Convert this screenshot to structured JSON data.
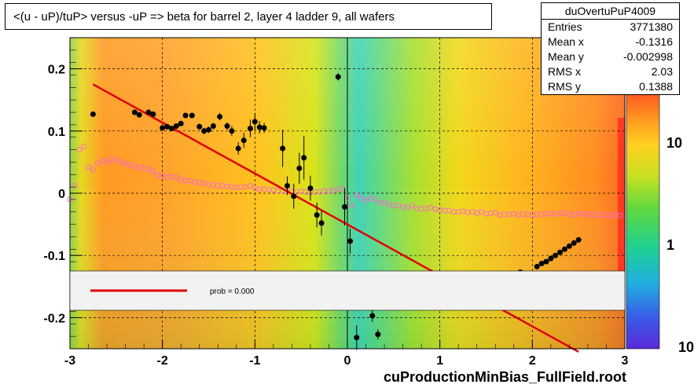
{
  "title": "<(u - uP)/tuP> versus  -uP => beta for barrel 2, layer 4 ladder 9, all wafers",
  "stats": {
    "name": "duOvertuPuP4009",
    "rows": [
      {
        "key": "Entries",
        "value": "3771380"
      },
      {
        "key": "Mean x",
        "value": "-0.1316"
      },
      {
        "key": "Mean y",
        "value": "-0.002998"
      },
      {
        "key": "RMS x",
        "value": "2.03"
      },
      {
        "key": "RMS y",
        "value": "0.1388"
      }
    ]
  },
  "footer": "cuProductionMinBias_FullField.root",
  "legend": {
    "text": "prob = 0.000"
  },
  "chart_data": {
    "type": "heatmap",
    "xlim": [
      -3,
      3
    ],
    "ylim": [
      -0.25,
      0.25
    ],
    "x_ticks": [
      "-3",
      "-2",
      "-1",
      "0",
      "1",
      "2",
      "3"
    ],
    "y_ticks": [
      "-0.2",
      "-0.1",
      "0",
      "0.1",
      "0.2"
    ],
    "colorbar_ticks": [
      "1",
      "10"
    ],
    "colorbar_edge_label": "10",
    "grid": true,
    "fit_line": {
      "x1": -2.75,
      "y1": 0.175,
      "x2": 2.5,
      "y2": -0.255,
      "color": "#e00000"
    },
    "profile_points": [
      {
        "x": -2.75,
        "y": 0.127,
        "err": 0.004
      },
      {
        "x": -2.3,
        "y": 0.13,
        "err": 0.004
      },
      {
        "x": -2.25,
        "y": 0.126,
        "err": 0.004
      },
      {
        "x": -2.15,
        "y": 0.13,
        "err": 0.004
      },
      {
        "x": -2.1,
        "y": 0.127,
        "err": 0.004
      },
      {
        "x": -2.0,
        "y": 0.105,
        "err": 0.004
      },
      {
        "x": -1.95,
        "y": 0.107,
        "err": 0.004
      },
      {
        "x": -1.9,
        "y": 0.104,
        "err": 0.004
      },
      {
        "x": -1.85,
        "y": 0.108,
        "err": 0.004
      },
      {
        "x": -1.8,
        "y": 0.112,
        "err": 0.004
      },
      {
        "x": -1.75,
        "y": 0.125,
        "err": 0.004
      },
      {
        "x": -1.68,
        "y": 0.125,
        "err": 0.004
      },
      {
        "x": -1.6,
        "y": 0.107,
        "err": 0.005
      },
      {
        "x": -1.55,
        "y": 0.1,
        "err": 0.005
      },
      {
        "x": -1.5,
        "y": 0.102,
        "err": 0.005
      },
      {
        "x": -1.45,
        "y": 0.108,
        "err": 0.005
      },
      {
        "x": -1.38,
        "y": 0.123,
        "err": 0.006
      },
      {
        "x": -1.3,
        "y": 0.108,
        "err": 0.006
      },
      {
        "x": -1.25,
        "y": 0.1,
        "err": 0.008
      },
      {
        "x": -1.18,
        "y": 0.072,
        "err": 0.01
      },
      {
        "x": -1.12,
        "y": 0.085,
        "err": 0.012
      },
      {
        "x": -1.05,
        "y": 0.104,
        "err": 0.014
      },
      {
        "x": -1.0,
        "y": 0.115,
        "err": 0.014
      },
      {
        "x": -0.95,
        "y": 0.106,
        "err": 0.01
      },
      {
        "x": -0.9,
        "y": 0.105,
        "err": 0.008
      },
      {
        "x": -0.7,
        "y": 0.072,
        "err": 0.03
      },
      {
        "x": -0.65,
        "y": 0.012,
        "err": 0.015
      },
      {
        "x": -0.58,
        "y": -0.005,
        "err": 0.02
      },
      {
        "x": -0.52,
        "y": 0.04,
        "err": 0.025
      },
      {
        "x": -0.47,
        "y": 0.057,
        "err": 0.035
      },
      {
        "x": -0.4,
        "y": 0.008,
        "err": 0.02
      },
      {
        "x": -0.33,
        "y": -0.035,
        "err": 0.02
      },
      {
        "x": -0.28,
        "y": -0.048,
        "err": 0.02
      },
      {
        "x": -0.1,
        "y": 0.187,
        "err": 0.006
      },
      {
        "x": -0.03,
        "y": -0.022,
        "err": 0.03
      },
      {
        "x": 0.03,
        "y": -0.077,
        "err": 0.02
      },
      {
        "x": 0.1,
        "y": -0.232,
        "err": 0.02
      },
      {
        "x": 0.27,
        "y": -0.197,
        "err": 0.01
      },
      {
        "x": 0.33,
        "y": -0.227,
        "err": 0.008
      },
      {
        "x": 1.87,
        "y": -0.127,
        "err": 0.003
      },
      {
        "x": 2.05,
        "y": -0.118,
        "err": 0.003
      },
      {
        "x": 2.1,
        "y": -0.113,
        "err": 0.003
      },
      {
        "x": 2.15,
        "y": -0.11,
        "err": 0.003
      },
      {
        "x": 2.2,
        "y": -0.105,
        "err": 0.003
      },
      {
        "x": 2.25,
        "y": -0.1,
        "err": 0.003
      },
      {
        "x": 2.3,
        "y": -0.095,
        "err": 0.003
      },
      {
        "x": 2.35,
        "y": -0.09,
        "err": 0.003
      },
      {
        "x": 2.4,
        "y": -0.085,
        "err": 0.003
      },
      {
        "x": 2.45,
        "y": -0.08,
        "err": 0.003
      },
      {
        "x": 2.5,
        "y": -0.075,
        "err": 0.003
      }
    ],
    "mean_curve": [
      [
        -3.0,
        -0.01
      ],
      [
        -2.95,
        0.012
      ],
      [
        -2.9,
        0.07
      ],
      [
        -2.85,
        0.075
      ],
      [
        -2.8,
        0.042
      ],
      [
        -2.75,
        0.038
      ],
      [
        -2.7,
        0.048
      ],
      [
        -2.65,
        0.052
      ],
      [
        -2.6,
        0.05
      ],
      [
        -2.55,
        0.055
      ],
      [
        -2.5,
        0.053
      ],
      [
        -2.45,
        0.05
      ],
      [
        -2.4,
        0.048
      ],
      [
        -2.35,
        0.045
      ],
      [
        -2.3,
        0.043
      ],
      [
        -2.25,
        0.042
      ],
      [
        -2.2,
        0.04
      ],
      [
        -2.15,
        0.038
      ],
      [
        -2.1,
        0.035
      ],
      [
        -2.05,
        0.03
      ],
      [
        -2.0,
        0.028
      ],
      [
        -1.95,
        0.025
      ],
      [
        -1.9,
        0.027
      ],
      [
        -1.85,
        0.025
      ],
      [
        -1.8,
        0.022
      ],
      [
        -1.75,
        0.02
      ],
      [
        -1.7,
        0.02
      ],
      [
        -1.65,
        0.018
      ],
      [
        -1.6,
        0.017
      ],
      [
        -1.55,
        0.016
      ],
      [
        -1.5,
        0.014
      ],
      [
        -1.45,
        0.013
      ],
      [
        -1.4,
        0.012
      ],
      [
        -1.35,
        0.012
      ],
      [
        -1.3,
        0.011
      ],
      [
        -1.25,
        0.01
      ],
      [
        -1.2,
        0.009
      ],
      [
        -1.15,
        0.01
      ],
      [
        -1.1,
        0.01
      ],
      [
        -1.05,
        0.012
      ],
      [
        -1.0,
        0.008
      ],
      [
        -0.95,
        0.006
      ],
      [
        -0.9,
        0.007
      ],
      [
        -0.85,
        0.006
      ],
      [
        -0.8,
        0.005
      ],
      [
        -0.75,
        0.004
      ],
      [
        -0.7,
        0.004
      ],
      [
        -0.65,
        0.003
      ],
      [
        -0.6,
        0.003
      ],
      [
        -0.55,
        0.002
      ],
      [
        -0.5,
        0.003
      ],
      [
        -0.45,
        0.002
      ],
      [
        -0.4,
        0.001
      ],
      [
        -0.35,
        0.002
      ],
      [
        -0.3,
        0.002
      ],
      [
        -0.25,
        0.004
      ],
      [
        -0.2,
        0.003
      ],
      [
        -0.15,
        0.005
      ],
      [
        -0.1,
        0.006
      ],
      [
        -0.05,
        0.007
      ],
      [
        0.0,
        -0.008
      ],
      [
        0.05,
        -0.02
      ],
      [
        0.1,
        -0.003
      ],
      [
        0.15,
        -0.008
      ],
      [
        0.2,
        -0.012
      ],
      [
        0.25,
        -0.008
      ],
      [
        0.3,
        -0.01
      ],
      [
        0.35,
        -0.015
      ],
      [
        0.4,
        -0.015
      ],
      [
        0.45,
        -0.018
      ],
      [
        0.5,
        -0.02
      ],
      [
        0.55,
        -0.02
      ],
      [
        0.6,
        -0.022
      ],
      [
        0.65,
        -0.023
      ],
      [
        0.7,
        -0.02
      ],
      [
        0.75,
        -0.025
      ],
      [
        0.8,
        -0.025
      ],
      [
        0.85,
        -0.025
      ],
      [
        0.9,
        -0.023
      ],
      [
        0.95,
        -0.026
      ],
      [
        1.0,
        -0.027
      ],
      [
        1.05,
        -0.028
      ],
      [
        1.1,
        -0.028
      ],
      [
        1.15,
        -0.03
      ],
      [
        1.2,
        -0.03
      ],
      [
        1.25,
        -0.029
      ],
      [
        1.3,
        -0.031
      ],
      [
        1.35,
        -0.03
      ],
      [
        1.4,
        -0.032
      ],
      [
        1.45,
        -0.03
      ],
      [
        1.5,
        -0.033
      ],
      [
        1.55,
        -0.032
      ],
      [
        1.6,
        -0.031
      ],
      [
        1.65,
        -0.035
      ],
      [
        1.7,
        -0.034
      ],
      [
        1.75,
        -0.034
      ],
      [
        1.8,
        -0.033
      ],
      [
        1.85,
        -0.035
      ],
      [
        1.9,
        -0.034
      ],
      [
        1.95,
        -0.034
      ],
      [
        2.0,
        -0.035
      ],
      [
        2.05,
        -0.034
      ],
      [
        2.1,
        -0.034
      ],
      [
        2.15,
        -0.033
      ],
      [
        2.2,
        -0.033
      ],
      [
        2.25,
        -0.034
      ],
      [
        2.3,
        -0.032
      ],
      [
        2.35,
        -0.032
      ],
      [
        2.4,
        -0.034
      ],
      [
        2.45,
        -0.034
      ],
      [
        2.5,
        -0.033
      ],
      [
        2.55,
        -0.033
      ],
      [
        2.6,
        -0.034
      ],
      [
        2.65,
        -0.034
      ],
      [
        2.7,
        -0.035
      ],
      [
        2.75,
        -0.035
      ],
      [
        2.8,
        -0.035
      ],
      [
        2.85,
        -0.036
      ],
      [
        2.9,
        -0.034
      ],
      [
        2.95,
        -0.036
      ]
    ],
    "colors": {
      "profile": "#000000",
      "mean_curve": "#ff66cc",
      "fit": "#e00000"
    }
  }
}
